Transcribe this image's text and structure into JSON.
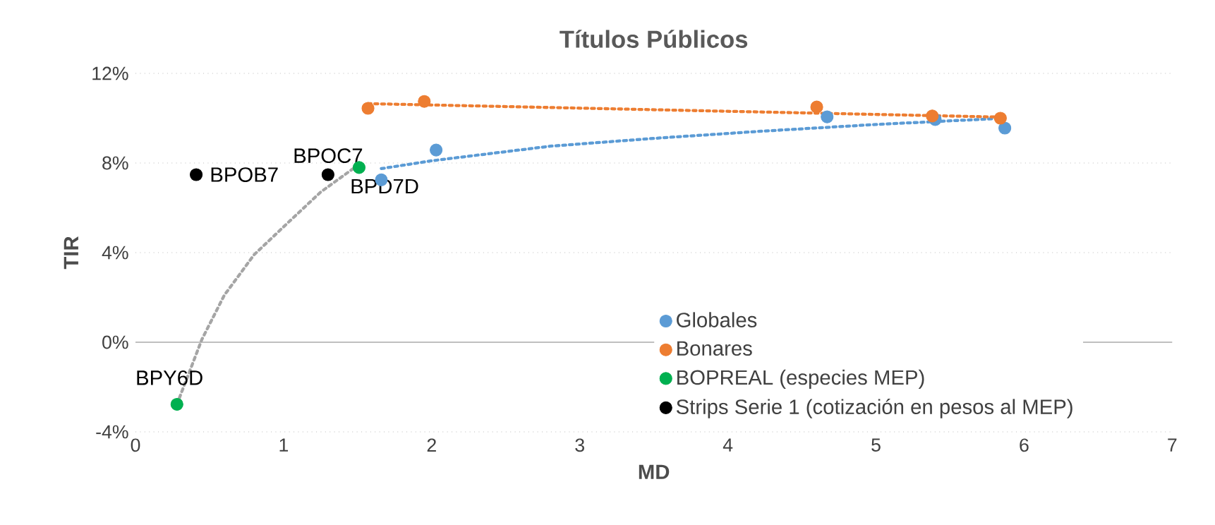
{
  "chart_data": {
    "type": "scatter",
    "title": "Títulos Públicos",
    "xlabel": "MD",
    "ylabel": "TIR",
    "xlim": [
      0,
      7
    ],
    "xticks": [
      0,
      1,
      2,
      3,
      4,
      5,
      6,
      7
    ],
    "ylim": [
      -4,
      12
    ],
    "yticks": [
      {
        "value": -4,
        "label": "-4%"
      },
      {
        "value": 0,
        "label": "0%"
      },
      {
        "value": 4,
        "label": "4%"
      },
      {
        "value": 8,
        "label": "8%"
      },
      {
        "value": 12,
        "label": "12%"
      }
    ],
    "grid": "y",
    "legend": "bottom right",
    "series": [
      {
        "type": "line",
        "color": "#5b9bd5",
        "line_style": "dotted",
        "marker": "none",
        "x": [
          1.66,
          2.0,
          2.8,
          3.5,
          4.23,
          5.0,
          5.87
        ],
        "values": [
          7.75,
          8.1,
          8.75,
          9.1,
          9.42,
          9.72,
          10.0
        ]
      },
      {
        "type": "line",
        "color": "#ed7d31",
        "line_style": "dotted",
        "marker": "none",
        "x": [
          1.57,
          5.84
        ],
        "values": [
          10.65,
          10.05
        ]
      },
      {
        "type": "line",
        "color": "#a5a5a5",
        "line_style": "dotted",
        "marker": "none",
        "x": [
          0.28,
          0.45,
          0.6,
          0.8,
          1.04,
          1.25,
          1.47
        ],
        "values": [
          -2.77,
          0.15,
          2.1,
          3.9,
          5.4,
          6.7,
          7.75
        ]
      },
      {
        "name": "Globales",
        "marker": "circle",
        "color": "#5b9bd5",
        "x": [
          1.66,
          2.03,
          4.67,
          5.4,
          5.87
        ],
        "values": [
          7.25,
          8.58,
          10.06,
          9.94,
          9.56
        ]
      },
      {
        "name": "Bonares",
        "marker": "circle",
        "color": "#ed7d31",
        "x": [
          1.57,
          1.95,
          4.6,
          5.38,
          5.84
        ],
        "values": [
          10.44,
          10.75,
          10.5,
          10.1,
          10.0
        ]
      },
      {
        "name": "BOPREAL (especies MEP)",
        "marker": "circle",
        "color": "#00b050",
        "x": [
          1.51,
          0.28
        ],
        "values": [
          7.8,
          -2.77
        ]
      },
      {
        "name": "Strips Serie 1 (cotización en pesos al MEP)",
        "marker": "circle",
        "color": "#000000",
        "x": [
          0.41,
          1.3
        ],
        "values": [
          7.48,
          7.48
        ]
      }
    ],
    "annotations": [
      {
        "text": "BPOC7",
        "x": 1.3,
        "y": 7.48
      },
      {
        "text": "BPOB7",
        "x": 0.41,
        "y": 7.48
      },
      {
        "text": "BPD7D",
        "x": 1.51,
        "y": 7.8
      },
      {
        "text": "BPY6D",
        "x": 0.28,
        "y": -2.77
      }
    ]
  }
}
